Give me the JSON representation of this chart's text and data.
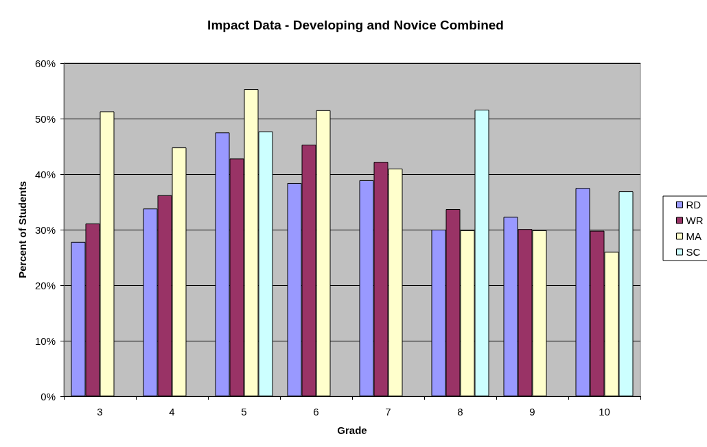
{
  "chart_data": {
    "type": "bar",
    "title": "Impact Data - Developing and Novice Combined",
    "xlabel": "Grade",
    "ylabel": "Percent of Students",
    "categories": [
      "3",
      "4",
      "5",
      "6",
      "7",
      "8",
      "9",
      "10"
    ],
    "series": [
      {
        "name": "RD",
        "color": "#9999ff",
        "values": [
          27.8,
          33.8,
          47.5,
          38.4,
          38.9,
          30.0,
          32.3,
          37.5
        ]
      },
      {
        "name": "WR",
        "color": "#993366",
        "values": [
          31.1,
          36.2,
          42.8,
          45.3,
          42.2,
          33.7,
          30.1,
          29.8
        ]
      },
      {
        "name": "MA",
        "color": "#ffffcc",
        "values": [
          51.3,
          44.8,
          55.3,
          51.5,
          41.0,
          29.9,
          29.9,
          26.0
        ]
      },
      {
        "name": "SC",
        "color": "#ccffff",
        "values": [
          null,
          null,
          47.7,
          null,
          null,
          51.6,
          null,
          36.9
        ]
      }
    ],
    "ylim": [
      0,
      60
    ],
    "yticks": [
      {
        "value": 0,
        "label": "0%"
      },
      {
        "value": 10,
        "label": "10%"
      },
      {
        "value": 20,
        "label": "20%"
      },
      {
        "value": 30,
        "label": "30%"
      },
      {
        "value": 40,
        "label": "40%"
      },
      {
        "value": 50,
        "label": "50%"
      },
      {
        "value": 60,
        "label": "60%"
      }
    ],
    "grid": "y",
    "legend": "right"
  }
}
